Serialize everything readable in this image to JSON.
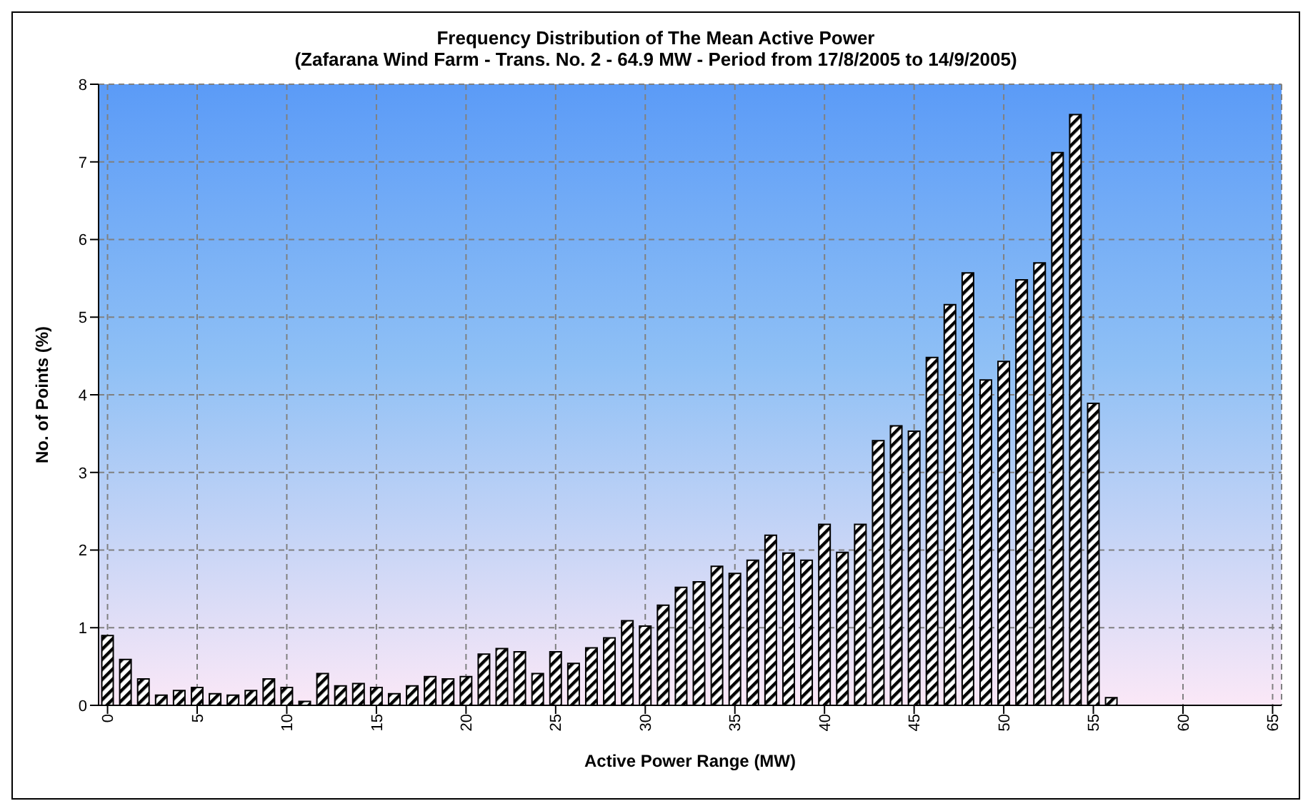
{
  "chart_data": {
    "type": "bar",
    "title": "Frequency Distribution of The Mean Active Power",
    "subtitle": "(Zafarana Wind Farm - Trans. No. 2 - 64.9 MW - Period from 17/8/2005 to 14/9/2005)",
    "xlabel": "Active Power Range (MW)",
    "ylabel": "No. of Points (%)",
    "categories": [
      "0",
      null,
      null,
      null,
      null,
      "5",
      null,
      null,
      null,
      null,
      "10",
      null,
      null,
      null,
      null,
      "15",
      null,
      null,
      null,
      null,
      "20",
      null,
      null,
      null,
      null,
      "25",
      null,
      null,
      null,
      null,
      "30",
      null,
      null,
      null,
      null,
      "35",
      null,
      null,
      null,
      null,
      "40",
      null,
      null,
      null,
      null,
      "45",
      null,
      null,
      null,
      null,
      "50",
      null,
      null,
      null,
      null,
      "55",
      null,
      null,
      null,
      null,
      "60",
      null,
      null,
      null,
      null,
      "65"
    ],
    "values": [
      0.9,
      0.59,
      0.34,
      0.13,
      0.19,
      0.23,
      0.15,
      0.13,
      0.19,
      0.34,
      0.23,
      0.05,
      0.41,
      0.25,
      0.28,
      0.23,
      0.15,
      0.25,
      0.37,
      0.34,
      0.37,
      0.66,
      0.73,
      0.69,
      0.41,
      0.69,
      0.54,
      0.74,
      0.87,
      1.09,
      1.02,
      1.29,
      1.52,
      1.59,
      1.79,
      1.7,
      1.87,
      2.19,
      1.96,
      1.87,
      2.33,
      1.97,
      2.33,
      3.41,
      3.6,
      3.53,
      4.48,
      5.16,
      5.57,
      4.19,
      4.43,
      5.48,
      5.7,
      7.12,
      7.61,
      3.89,
      0.1,
      0,
      0,
      0,
      0,
      0,
      0,
      0,
      0,
      0
    ],
    "color": "#000000",
    "ylim": [
      0,
      8
    ],
    "yticks": [
      0,
      1,
      2,
      3,
      4,
      5,
      6,
      7,
      8
    ],
    "grid": true
  }
}
